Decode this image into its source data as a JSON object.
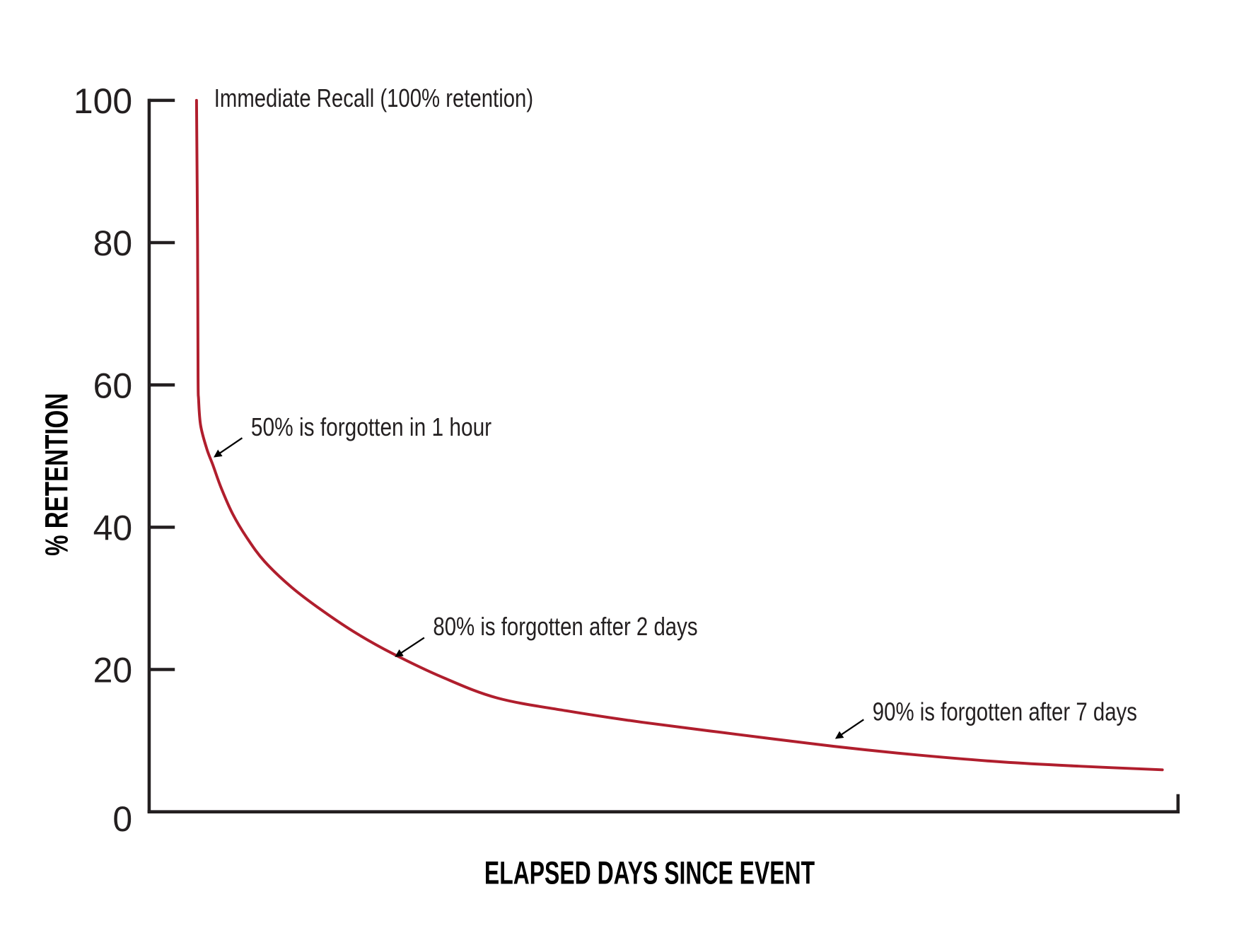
{
  "chart_data": {
    "type": "line",
    "title": "",
    "xlabel": "ELAPSED DAYS SINCE EVENT",
    "ylabel": "% RETENTION",
    "ylim": [
      0,
      100
    ],
    "xlim": [
      0,
      100
    ],
    "yticks": [
      "0",
      "20",
      "40",
      "60",
      "80",
      "100"
    ],
    "ytick_values": [
      0,
      20,
      40,
      60,
      80,
      100
    ],
    "xticks": [],
    "grid": false,
    "legend": "none",
    "series": [
      {
        "color": "#b01e2d",
        "points": [
          [
            4.6,
            100
          ],
          [
            4.7,
            80
          ],
          [
            4.75,
            61.1
          ],
          [
            4.8,
            58
          ],
          [
            5.0,
            54.3
          ],
          [
            5.6,
            51
          ],
          [
            6.2,
            48.7
          ],
          [
            7.0,
            45.5
          ],
          [
            8.1,
            41.9
          ],
          [
            9.5,
            38.5
          ],
          [
            11.2,
            35.2
          ],
          [
            13.8,
            31.6
          ],
          [
            16.7,
            28.4
          ],
          [
            20.0,
            25.2
          ],
          [
            23.7,
            22.2
          ],
          [
            28.5,
            18.9
          ],
          [
            33.8,
            16.0
          ],
          [
            40.5,
            14.2
          ],
          [
            47.8,
            12.6
          ],
          [
            57.0,
            10.9
          ],
          [
            66.5,
            9.2
          ],
          [
            74.5,
            8.0
          ],
          [
            82.9,
            7.0
          ],
          [
            90.5,
            6.4
          ],
          [
            98.4,
            5.9
          ]
        ]
      }
    ],
    "annotations": [
      {
        "text": "Immediate Recall (100% retention)",
        "x": 4.6,
        "y": 100,
        "arrow": false
      },
      {
        "text": "50% is forgotten in 1 hour",
        "x": 6.3,
        "y": 50,
        "arrow": true
      },
      {
        "text": "80% is forgotten after 2 days",
        "x": 23.9,
        "y": 22,
        "arrow": true
      },
      {
        "text": "90% is forgotten after 7 days",
        "x": 66.7,
        "y": 10.4,
        "arrow": true
      }
    ]
  },
  "colors": {
    "curve": "#b01e2d",
    "axis": "#231f20",
    "text": "#231f20"
  }
}
